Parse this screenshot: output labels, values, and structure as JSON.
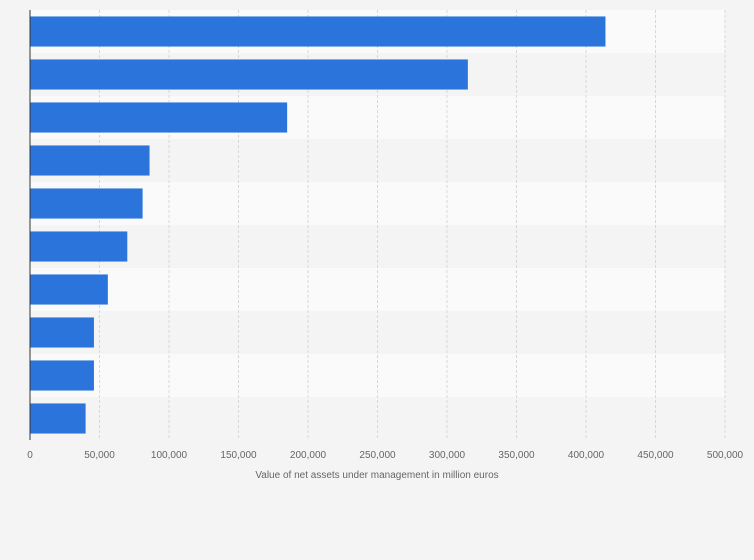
{
  "chart_data": {
    "type": "bar",
    "orientation": "horizontal",
    "categories": [
      "",
      "",
      "",
      "",
      "",
      "",
      "",
      "",
      "",
      ""
    ],
    "values": [
      414000,
      315000,
      185000,
      86000,
      81000,
      70000,
      56000,
      46000,
      46000,
      40000
    ],
    "xlabel": "Value of net assets under management in million euros",
    "ylabel": "",
    "xlim": [
      0,
      500000
    ],
    "x_ticks": [
      0,
      50000,
      100000,
      150000,
      200000,
      250000,
      300000,
      350000,
      400000,
      450000,
      500000
    ],
    "x_tick_labels": [
      "0",
      "50,000",
      "100,000",
      "150,000",
      "200,000",
      "250,000",
      "300,000",
      "350,000",
      "400,000",
      "450,000",
      "500,000"
    ],
    "grid": true,
    "colors": {
      "bar": "#2a74db",
      "background": "#f4f4f4",
      "band_light": "#fafafa",
      "band_dark": "#f4f4f4",
      "grid": "#d8d8d8",
      "axis": "#333333",
      "text": "#666666"
    }
  }
}
